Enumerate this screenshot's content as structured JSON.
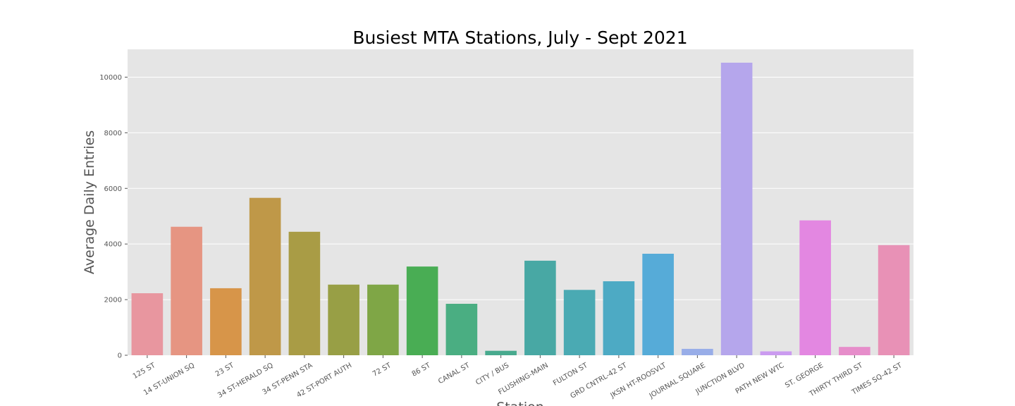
{
  "chart_data": {
    "type": "bar",
    "title": "Busiest MTA Stations, July - Sept 2021",
    "xlabel": "Station",
    "ylabel": "Average Daily Entries",
    "ylim": [
      0,
      11000
    ],
    "yticks": [
      0,
      2000,
      4000,
      6000,
      8000,
      10000
    ],
    "grid": true,
    "categories": [
      "125 ST",
      "14 ST-UNION SQ",
      "23 ST",
      "34 ST-HERALD SQ",
      "34 ST-PENN STA",
      "42 ST-PORT AUTH",
      "72 ST",
      "86 ST",
      "CANAL ST",
      "CITY / BUS",
      "FLUSHING-MAIN",
      "FULTON ST",
      "GRD CNTRL-42 ST",
      "JKSN HT-ROOSVLT",
      "JOURNAL SQUARE",
      "JUNCTION BLVD",
      "PATH NEW WTC",
      "ST. GEORGE",
      "THIRTY THIRD ST",
      "TIMES SQ-42 ST"
    ],
    "values": [
      2230,
      4620,
      2410,
      5660,
      4440,
      2540,
      2540,
      3190,
      1850,
      160,
      3400,
      2350,
      2660,
      3650,
      230,
      10520,
      140,
      4850,
      300,
      3960
    ],
    "colors": [
      "#e8969f",
      "#e69582",
      "#d79549",
      "#bf9848",
      "#a99c45",
      "#989f45",
      "#7fa646",
      "#49ad54",
      "#4aae82",
      "#48aa8e",
      "#48a8a4",
      "#4aaab3",
      "#4daac4",
      "#56abd8",
      "#98ade8",
      "#b5a6ec",
      "#cb9bf0",
      "#e387e1",
      "#e68dca",
      "#e891b6"
    ]
  }
}
